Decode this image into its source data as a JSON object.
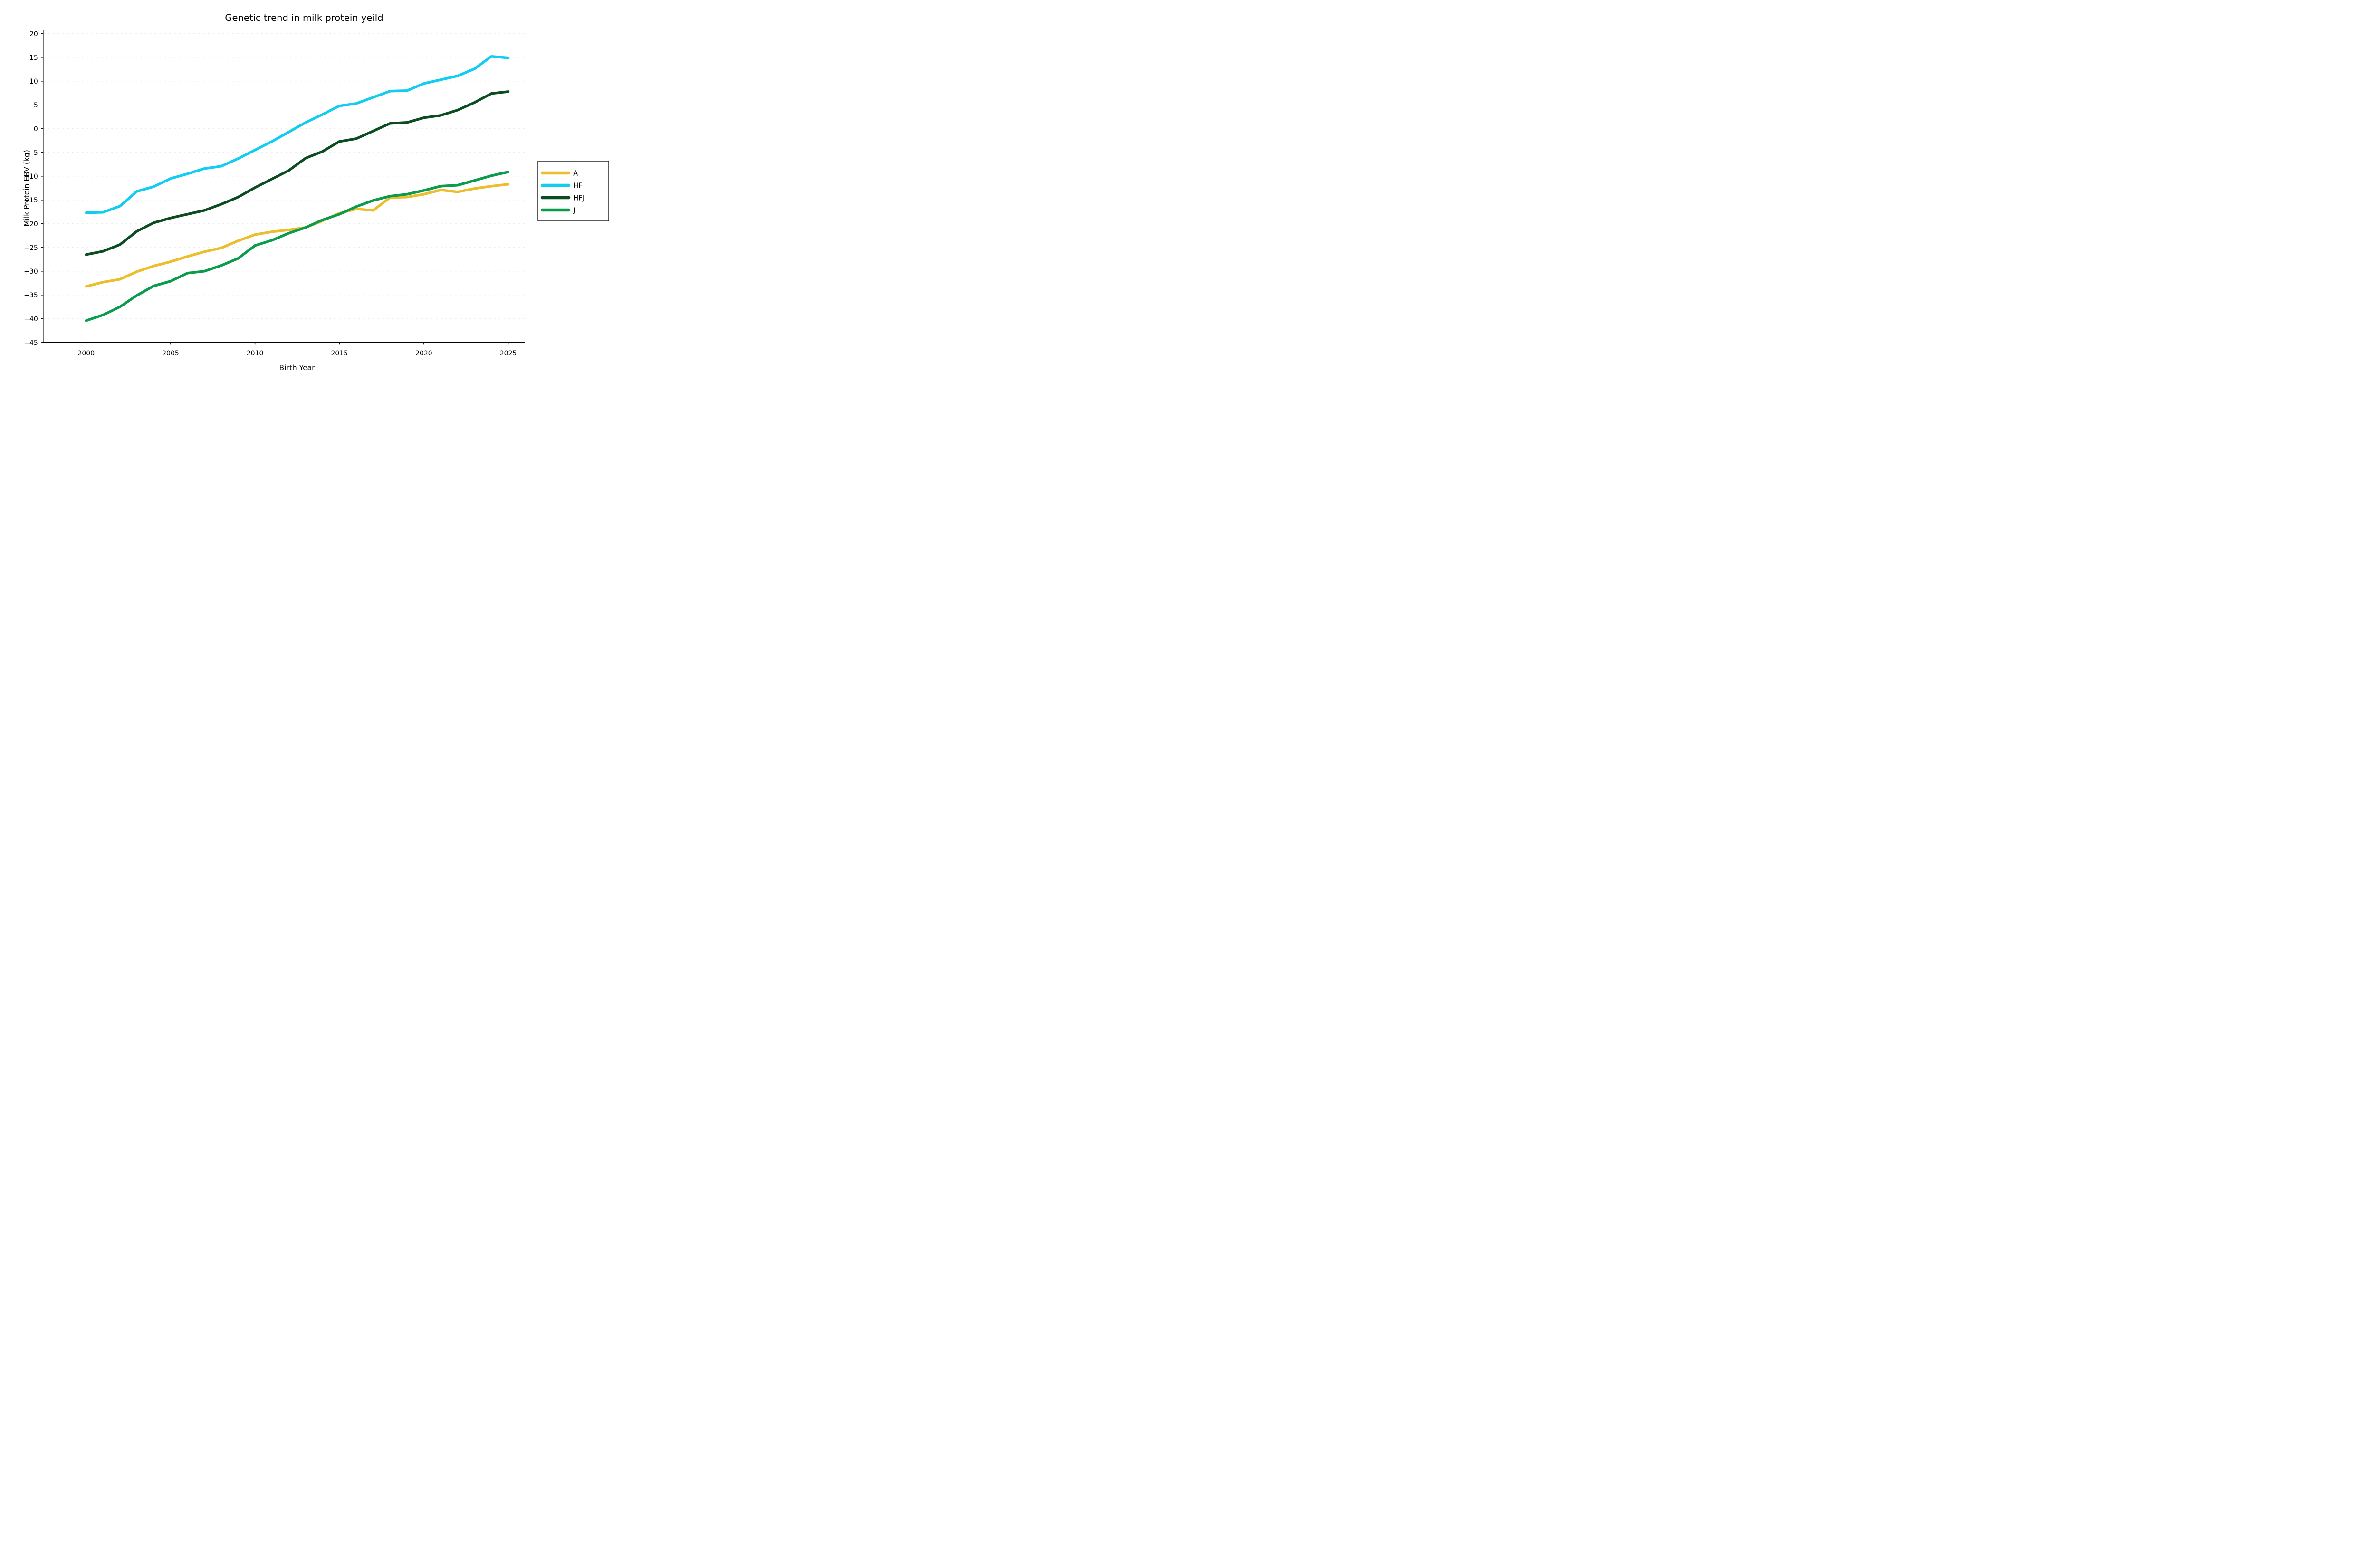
{
  "title": "Genetic trend in milk protein yeild",
  "axes": {
    "xlabel": "Birth Year",
    "ylabel": "Milk Protein EBV (kg)"
  },
  "legend": {
    "position": "right-outside",
    "entries": [
      "A",
      "HF",
      "HFJ",
      "J"
    ]
  },
  "chart_data": {
    "type": "line",
    "title": "Genetic trend in milk protein yeild",
    "xlabel": "Birth Year",
    "ylabel": "Milk Protein EBV (kg)",
    "xlim": [
      2000,
      2025
    ],
    "ylim": [
      -45,
      20
    ],
    "grid": "horizontal-dotted",
    "gridline_color": "#e7e7e7",
    "legend_position": "right-outside",
    "xticks": [
      2000,
      2005,
      2010,
      2015,
      2020,
      2025
    ],
    "xtick_labels": [
      "2000",
      "2005",
      "2010",
      "2015",
      "2020",
      "2025"
    ],
    "yticks": [
      20,
      15,
      10,
      5,
      0,
      -5,
      -10,
      -15,
      -20,
      -25,
      -30,
      -35,
      -40,
      -45
    ],
    "ytick_labels": [
      "20",
      "15",
      "10",
      "5",
      "0",
      "−5",
      "−10",
      "−15",
      "−20",
      "−25",
      "−30",
      "−35",
      "−40",
      "−45"
    ],
    "x": [
      2000,
      2001,
      2002,
      2003,
      2004,
      2005,
      2006,
      2007,
      2008,
      2009,
      2010,
      2011,
      2012,
      2013,
      2014,
      2015,
      2016,
      2017,
      2018,
      2019,
      2020,
      2021,
      2022,
      2023,
      2024,
      2025
    ],
    "series": [
      {
        "name": "A",
        "color": "#EDBE2C",
        "values": [
          -33.2,
          -32.3,
          -31.7,
          -30.1,
          -28.9,
          -28.0,
          -26.9,
          -25.9,
          -25.1,
          -23.6,
          -22.3,
          -21.7,
          -21.3,
          -20.8,
          -19.4,
          -17.8,
          -16.9,
          -17.2,
          -14.5,
          -14.4,
          -13.8,
          -12.9,
          -13.3,
          -12.6,
          -12.1,
          -11.7
        ]
      },
      {
        "name": "HF",
        "color": "#12CDF2",
        "values": [
          -17.7,
          -17.6,
          -16.3,
          -13.2,
          -12.2,
          -10.5,
          -9.5,
          -8.4,
          -7.9,
          -6.3,
          -4.5,
          -2.7,
          -0.7,
          1.3,
          3.0,
          4.8,
          5.3,
          6.6,
          7.9,
          8.0,
          9.5,
          10.3,
          11.1,
          12.6,
          15.2,
          14.9
        ]
      },
      {
        "name": "HFJ",
        "color": "#0B4D21",
        "values": [
          -26.5,
          -25.8,
          -24.4,
          -21.6,
          -19.8,
          -18.8,
          -18.0,
          -17.2,
          -15.9,
          -14.4,
          -12.4,
          -10.6,
          -8.8,
          -6.2,
          -4.8,
          -2.7,
          -2.1,
          -0.5,
          1.1,
          1.3,
          2.3,
          2.8,
          3.9,
          5.5,
          7.4,
          7.8
        ]
      },
      {
        "name": "J",
        "color": "#0A9B4C",
        "values": [
          -40.4,
          -39.2,
          -37.5,
          -35.1,
          -33.1,
          -32.1,
          -30.4,
          -30.0,
          -28.8,
          -27.3,
          -24.6,
          -23.5,
          -22.0,
          -20.8,
          -19.2,
          -18.0,
          -16.4,
          -15.1,
          -14.2,
          -13.8,
          -13.0,
          -12.1,
          -11.9,
          -10.9,
          -9.9,
          -9.1
        ]
      }
    ]
  },
  "style": {
    "line_width": 5.5,
    "axis_color": "#000000",
    "background": "#ffffff"
  }
}
